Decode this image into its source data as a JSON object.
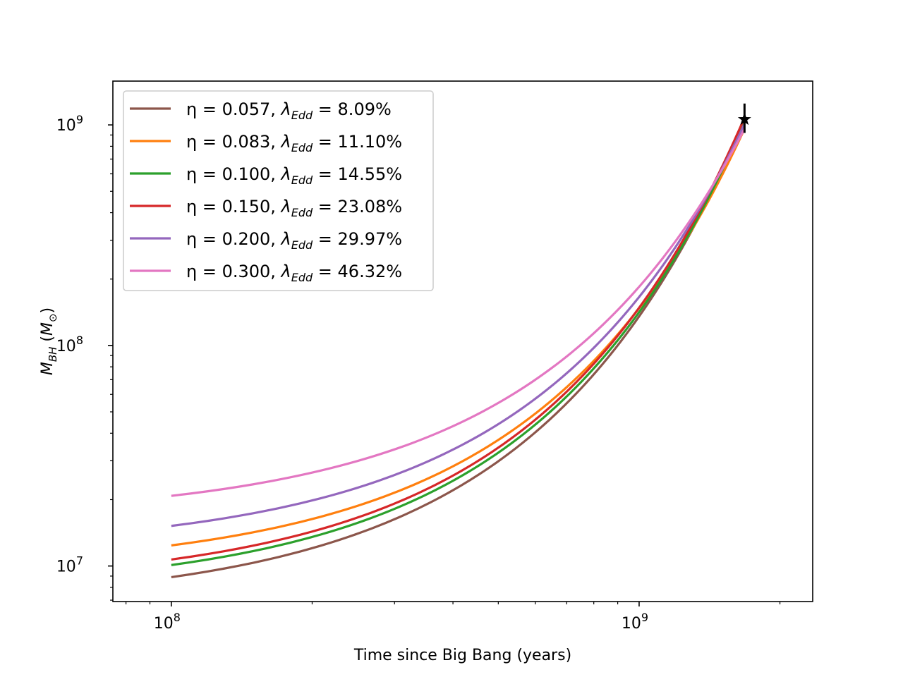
{
  "chart_data": {
    "type": "line",
    "title": "",
    "xlabel": "Time since Big Bang (years)",
    "ylabel_main": "M",
    "ylabel_sub": "BH",
    "ylabel_unit_main": "M",
    "ylabel_unit_sub": "⊙",
    "xscale": "log",
    "yscale": "log",
    "xlim": [
      75000000,
      2350000000
    ],
    "ylim": [
      6900000,
      1580000000
    ],
    "x_ticks": [
      {
        "base": "10",
        "exp": "8",
        "value": 100000000
      },
      {
        "base": "10",
        "exp": "9",
        "value": 1000000000
      }
    ],
    "y_ticks": [
      {
        "base": "10",
        "exp": "7",
        "value": 10000000
      },
      {
        "base": "10",
        "exp": "8",
        "value": 100000000
      },
      {
        "base": "10",
        "exp": "9",
        "value": 1000000000
      }
    ],
    "grid": false,
    "legend_position": "top-left",
    "series": [
      {
        "eta_label": "η = 0.057, ",
        "lambda_label": "λ",
        "lambda_sub": "Edd",
        "value_label": " = 8.09%",
        "color": "#8c564b",
        "start": [
          100000000,
          8900000
        ],
        "end": [
          1680000000,
          1060000000
        ]
      },
      {
        "eta_label": "η = 0.083, ",
        "lambda_label": "λ",
        "lambda_sub": "Edd",
        "value_label": " = 11.10%",
        "color": "#ff7f0e",
        "start": [
          100000000,
          12400000
        ],
        "end": [
          1680000000,
          960000000
        ]
      },
      {
        "eta_label": "η = 0.100, ",
        "lambda_label": "λ",
        "lambda_sub": "Edd",
        "value_label": " = 14.55%",
        "color": "#2ca02c",
        "start": [
          100000000,
          10100000
        ],
        "end": [
          1680000000,
          1040000000
        ]
      },
      {
        "eta_label": "η = 0.150, ",
        "lambda_label": "λ",
        "lambda_sub": "Edd",
        "value_label": " = 23.08%",
        "color": "#d62728",
        "start": [
          100000000,
          10700000
        ],
        "end": [
          1680000000,
          1080000000
        ]
      },
      {
        "eta_label": "η = 0.200, ",
        "lambda_label": "λ",
        "lambda_sub": "Edd",
        "value_label": " = 29.97%",
        "color": "#9467bd",
        "start": [
          100000000,
          15200000
        ],
        "end": [
          1680000000,
          1010000000
        ]
      },
      {
        "eta_label": "η = 0.300, ",
        "lambda_label": "λ",
        "lambda_sub": "Edd",
        "value_label": " = 46.32%",
        "color": "#e377c2",
        "start": [
          100000000,
          20800000
        ],
        "end": [
          1680000000,
          960000000
        ]
      }
    ],
    "observed_point": {
      "x": 1680000000,
      "y": 1060000000,
      "yerr_low": 920000000,
      "yerr_high": 1250000000,
      "marker": "star"
    }
  }
}
